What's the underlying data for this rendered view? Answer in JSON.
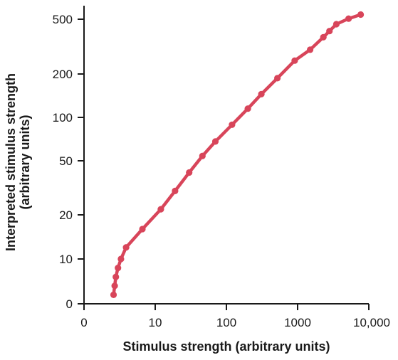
{
  "chart_data": {
    "type": "line",
    "xlabel": "Stimulus strength (arbitrary units)",
    "ylabel_lines": [
      "Interpreted stimulus strength",
      "(arbitrary units)"
    ],
    "x_scale": "log",
    "y_scale": "log-like (nonlinear)",
    "x_ticks": [
      {
        "value": 0,
        "label": "0"
      },
      {
        "value": 10,
        "label": "10"
      },
      {
        "value": 100,
        "label": "100"
      },
      {
        "value": 1000,
        "label": "1000"
      },
      {
        "value": 10000,
        "label": "10,000"
      }
    ],
    "y_ticks": [
      {
        "value": 0,
        "label": "0"
      },
      {
        "value": 10,
        "label": "10"
      },
      {
        "value": 20,
        "label": "20"
      },
      {
        "value": 50,
        "label": "50"
      },
      {
        "value": 100,
        "label": "100"
      },
      {
        "value": 200,
        "label": "200"
      },
      {
        "value": 500,
        "label": "500"
      }
    ],
    "grid": false,
    "legend": "none",
    "series": [
      {
        "color": "#d8455a",
        "points": [
          {
            "x": 2.6,
            "y": 2
          },
          {
            "x": 2.7,
            "y": 4
          },
          {
            "x": 2.8,
            "y": 6
          },
          {
            "x": 3.0,
            "y": 8
          },
          {
            "x": 3.3,
            "y": 10
          },
          {
            "x": 3.9,
            "y": 12
          },
          {
            "x": 6.6,
            "y": 16
          },
          {
            "x": 12,
            "y": 22
          },
          {
            "x": 19,
            "y": 30
          },
          {
            "x": 30,
            "y": 41
          },
          {
            "x": 46,
            "y": 54
          },
          {
            "x": 70,
            "y": 68
          },
          {
            "x": 120,
            "y": 89
          },
          {
            "x": 200,
            "y": 115
          },
          {
            "x": 310,
            "y": 145
          },
          {
            "x": 520,
            "y": 187
          },
          {
            "x": 910,
            "y": 250
          },
          {
            "x": 1500,
            "y": 300
          },
          {
            "x": 2300,
            "y": 370
          },
          {
            "x": 2800,
            "y": 410
          },
          {
            "x": 3500,
            "y": 460
          },
          {
            "x": 5200,
            "y": 505
          },
          {
            "x": 7700,
            "y": 540
          }
        ]
      }
    ]
  }
}
